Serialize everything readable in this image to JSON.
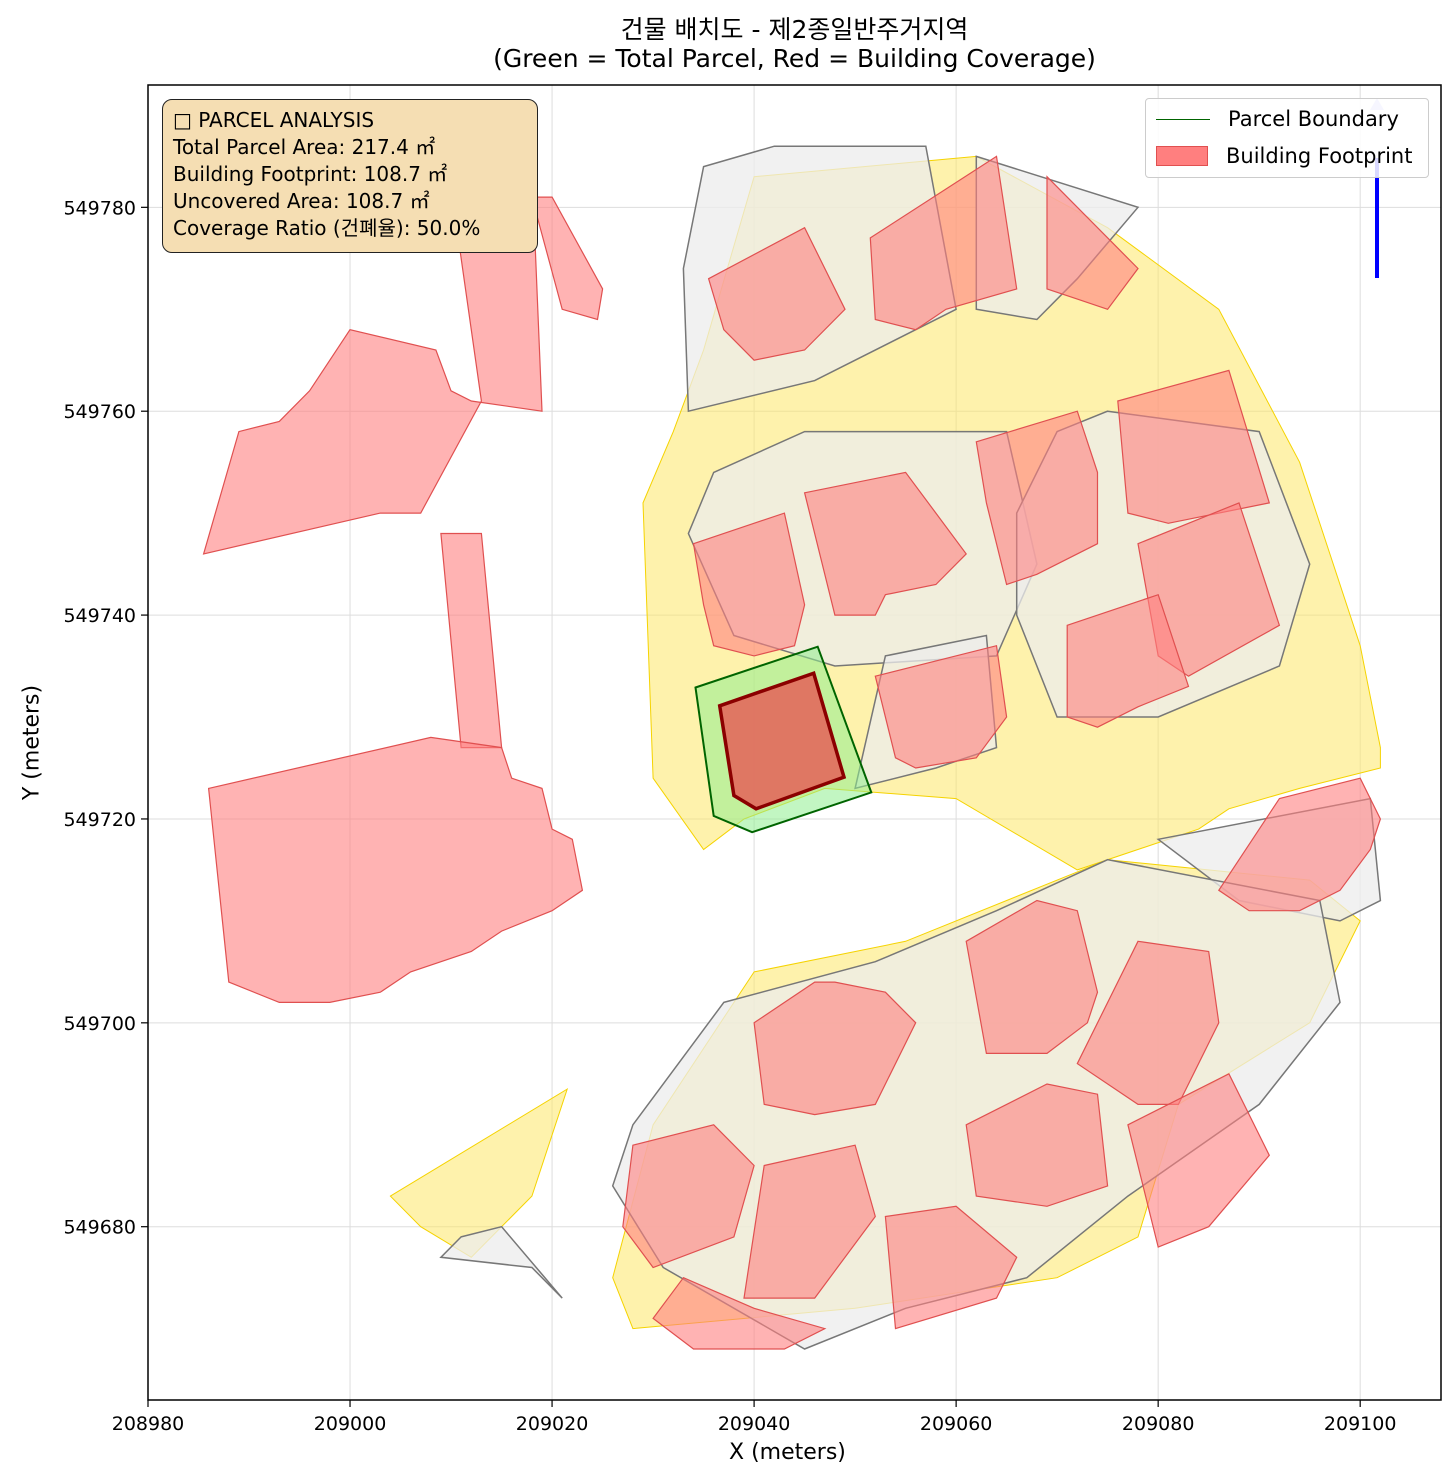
{
  "title": {
    "line1": "건물 배치도 - 제2종일반주거지역",
    "line2": "(Green = Total Parcel, Red = Building Coverage)"
  },
  "axes": {
    "xlabel": "X (meters)",
    "ylabel": "Y (meters)",
    "xlim": [
      208980,
      209108
    ],
    "ylim": [
      549663,
      549792
    ],
    "xticks": [
      208980,
      209000,
      209020,
      209040,
      209060,
      209080,
      209100
    ],
    "yticks": [
      549680,
      549700,
      549720,
      549740,
      549760,
      549780
    ],
    "grid": true
  },
  "info_box": {
    "line1": "□ PARCEL ANALYSIS",
    "line2": "Total Parcel Area: 217.4 ㎡",
    "line3": "Building Footprint: 108.7 ㎡",
    "line4": "Uncovered Area: 108.7 ㎡",
    "line5": "Coverage Ratio (건폐율): 50.0%"
  },
  "legend": {
    "placement": "top-right",
    "items": [
      {
        "label": "Parcel Boundary",
        "color": "#006400",
        "kind": "line"
      },
      {
        "label": "Building Footprint",
        "color": "#ff7f7f",
        "kind": "patch"
      }
    ]
  },
  "colors": {
    "road": "#fde768",
    "parcel_fill": "#ececec",
    "building": "#ff8080",
    "target_parcel_fill": "#90ee90",
    "target_parcel_edge": "#006400",
    "target_building_fill": "#e07060",
    "target_building_edge": "#8b0000",
    "north_arrow": "#0000ff"
  },
  "map_data": {
    "target_parcel": [
      [
        209034.2,
        549732.9
      ],
      [
        209046.3,
        549736.9
      ],
      [
        209051.6,
        549722.6
      ],
      [
        209039.8,
        549718.7
      ],
      [
        209036.0,
        549720.3
      ]
    ],
    "target_building": [
      [
        209036.6,
        549731.1
      ],
      [
        209045.9,
        549734.3
      ],
      [
        209048.9,
        549724.1
      ],
      [
        209040.2,
        549721.0
      ],
      [
        209038.0,
        549722.3
      ]
    ],
    "roads": [
      [
        [
          209032.0,
          549758.0
        ],
        [
          209035.0,
          549766.0
        ],
        [
          209040.0,
          549783.0
        ],
        [
          209062.0,
          549785.0
        ],
        [
          209075.0,
          549778.0
        ],
        [
          209086.0,
          549770.0
        ],
        [
          209094.0,
          549755.0
        ],
        [
          209100.0,
          549737.0
        ],
        [
          209102.0,
          549727.0
        ],
        [
          209102.0,
          549725.0
        ],
        [
          209094.0,
          549723.0
        ],
        [
          209087.0,
          549721.0
        ],
        [
          209084.0,
          549719.0
        ],
        [
          209072.0,
          549715.0
        ],
        [
          209060.0,
          549722.0
        ],
        [
          209047.0,
          549723.0
        ],
        [
          209039.0,
          549720.0
        ],
        [
          209035.0,
          549717.0
        ],
        [
          209030.0,
          549724.0
        ],
        [
          209029.0,
          549751.0
        ]
      ],
      [
        [
          209040.0,
          549705.0
        ],
        [
          209055.0,
          549708.0
        ],
        [
          209075.0,
          549716.0
        ],
        [
          209095.0,
          549714.0
        ],
        [
          209100.0,
          549710.0
        ],
        [
          209095.0,
          549700.0
        ],
        [
          209082.0,
          549692.0
        ],
        [
          209078.0,
          549679.0
        ],
        [
          209070.0,
          549675.0
        ],
        [
          209050.0,
          549672.0
        ],
        [
          209028.0,
          549670.0
        ],
        [
          209026.0,
          549675.0
        ],
        [
          209030.0,
          549690.0
        ]
      ],
      [
        [
          209004.0,
          549683.0
        ],
        [
          209021.5,
          549693.5
        ],
        [
          209018.0,
          549683.0
        ],
        [
          209012.0,
          549677.0
        ],
        [
          209007.0,
          549680.0
        ]
      ]
    ],
    "parcels": [
      [
        [
          209033.5,
          549760.0
        ],
        [
          209046.0,
          549763.0
        ],
        [
          209060.0,
          549770.0
        ],
        [
          209057.0,
          549786.0
        ],
        [
          209042.0,
          549786.0
        ],
        [
          209035.0,
          549784.0
        ],
        [
          209033.0,
          549774.0
        ]
      ],
      [
        [
          209062.0,
          549785.0
        ],
        [
          209078.0,
          549780.0
        ],
        [
          209072.0,
          549773.0
        ],
        [
          209068.0,
          549769.0
        ],
        [
          209062.0,
          549770.0
        ]
      ],
      [
        [
          209045.0,
          549758.0
        ],
        [
          209065.0,
          549758.0
        ],
        [
          209068.0,
          549745.0
        ],
        [
          209064.0,
          549736.0
        ],
        [
          209048.0,
          549735.0
        ],
        [
          209038.0,
          549738.0
        ],
        [
          209033.5,
          549748.0
        ],
        [
          209036.0,
          549754.0
        ]
      ],
      [
        [
          209075.0,
          549760.0
        ],
        [
          209090.0,
          549758.0
        ],
        [
          209095.0,
          549745.0
        ],
        [
          209092.0,
          549735.0
        ],
        [
          209080.0,
          549730.0
        ],
        [
          209070.0,
          549730.0
        ],
        [
          209066.0,
          549740.0
        ],
        [
          209066.0,
          549750.0
        ],
        [
          209070.0,
          549758.0
        ]
      ],
      [
        [
          209053.0,
          549736.0
        ],
        [
          209063.0,
          549738.0
        ],
        [
          209064.0,
          549727.0
        ],
        [
          209058.0,
          549725.0
        ],
        [
          209050.0,
          549723.0
        ]
      ],
      [
        [
          209080.0,
          549718.0
        ],
        [
          209101.0,
          549722.0
        ],
        [
          209102.0,
          549712.0
        ],
        [
          209098.0,
          549710.0
        ],
        [
          209088.0,
          549712.0
        ]
      ],
      [
        [
          209037.0,
          549702.0
        ],
        [
          209052.0,
          549706.0
        ],
        [
          209064.0,
          549711.0
        ],
        [
          209075.0,
          549716.0
        ],
        [
          209096.0,
          549712.0
        ],
        [
          209098.0,
          549702.0
        ],
        [
          209090.0,
          549692.0
        ],
        [
          209077.0,
          549683.0
        ],
        [
          209067.0,
          549675.0
        ],
        [
          209055.0,
          549672.0
        ],
        [
          209045.0,
          549668.0
        ],
        [
          209031.0,
          549676.0
        ],
        [
          209026.0,
          549684.0
        ],
        [
          209028.0,
          549690.0
        ]
      ],
      [
        [
          209011.0,
          549679.0
        ],
        [
          209015.0,
          549680.0
        ],
        [
          209021.0,
          549673.0
        ],
        [
          209018.0,
          549676.0
        ],
        [
          209009.0,
          549677.0
        ]
      ]
    ],
    "buildings": [
      [
        [
          209018.0,
          549781.0
        ],
        [
          209020.0,
          549781.0
        ],
        [
          209025.0,
          549772.0
        ],
        [
          209024.5,
          549769.0
        ],
        [
          209021.0,
          549770.0
        ]
      ],
      [
        [
          209010.0,
          549782.0
        ],
        [
          209018.0,
          549784.0
        ],
        [
          209019.0,
          549760.0
        ],
        [
          209012.0,
          549761.0
        ],
        [
          209010.0,
          549762.0
        ],
        [
          209008.5,
          549766.0
        ],
        [
          209000.0,
          549768.0
        ],
        [
          208996.0,
          549762.0
        ],
        [
          208993.0,
          549759.0
        ],
        [
          208989.0,
          549758.0
        ],
        [
          208985.5,
          549746.0
        ],
        [
          209003.0,
          549750.0
        ],
        [
          209007.0,
          549750.0
        ],
        [
          209013.0,
          549761.0
        ]
      ],
      [
        [
          209009.0,
          549748.0
        ],
        [
          209013.0,
          549748.0
        ],
        [
          209015.0,
          549727.0
        ],
        [
          209011.0,
          549727.0
        ]
      ],
      [
        [
          208986.0,
          549723.0
        ],
        [
          209008.0,
          549728.0
        ],
        [
          209015.0,
          549727.0
        ],
        [
          209016.0,
          549724.0
        ],
        [
          209019.0,
          549723.0
        ],
        [
          209020.0,
          549719.0
        ],
        [
          209022.0,
          549718.0
        ],
        [
          209023.0,
          549713.0
        ],
        [
          209020.0,
          549711.0
        ],
        [
          209015.0,
          549709.0
        ],
        [
          209012.0,
          549707.0
        ],
        [
          209006.0,
          549705.0
        ],
        [
          209003.0,
          549703.0
        ],
        [
          208998.0,
          549702.0
        ],
        [
          208993.0,
          549702.0
        ],
        [
          208988.0,
          549704.0
        ]
      ],
      [
        [
          209035.5,
          549773.0
        ],
        [
          209045.0,
          549778.0
        ],
        [
          209049.0,
          549770.0
        ],
        [
          209045.0,
          549766.0
        ],
        [
          209040.0,
          549765.0
        ],
        [
          209037.0,
          549768.0
        ]
      ],
      [
        [
          209051.5,
          549777.0
        ],
        [
          209064.0,
          549785.0
        ],
        [
          209066.0,
          549772.0
        ],
        [
          209059.0,
          549770.0
        ],
        [
          209056.0,
          549768.0
        ],
        [
          209052.0,
          549769.0
        ]
      ],
      [
        [
          209069.0,
          549783.0
        ],
        [
          209078.0,
          549774.0
        ],
        [
          209075.0,
          549770.0
        ],
        [
          209072.0,
          549771.0
        ],
        [
          209069.0,
          549772.0
        ]
      ],
      [
        [
          209034.0,
          549747.0
        ],
        [
          209043.0,
          549750.0
        ],
        [
          209045.0,
          549741.0
        ],
        [
          209044.0,
          549737.0
        ],
        [
          209040.0,
          549736.0
        ],
        [
          209036.0,
          549737.0
        ],
        [
          209035.0,
          549741.0
        ]
      ],
      [
        [
          209045.0,
          549752.0
        ],
        [
          209055.0,
          549754.0
        ],
        [
          209058.0,
          549750.0
        ],
        [
          209061.0,
          549746.0
        ],
        [
          209058.0,
          549743.0
        ],
        [
          209053.0,
          549742.0
        ],
        [
          209052.0,
          549740.0
        ],
        [
          209048.0,
          549740.0
        ]
      ],
      [
        [
          209062.0,
          549757.0
        ],
        [
          209072.0,
          549760.0
        ],
        [
          209074.0,
          549754.0
        ],
        [
          209074.0,
          549747.0
        ],
        [
          209068.0,
          549744.0
        ],
        [
          209065.0,
          549743.0
        ],
        [
          209063.0,
          549751.0
        ]
      ],
      [
        [
          209076.0,
          549761.0
        ],
        [
          209087.0,
          549764.0
        ],
        [
          209091.0,
          549751.0
        ],
        [
          209081.0,
          549749.0
        ],
        [
          209077.0,
          549750.0
        ]
      ],
      [
        [
          209078.0,
          549747.0
        ],
        [
          209088.0,
          549751.0
        ],
        [
          209092.0,
          549739.0
        ],
        [
          209083.0,
          549734.0
        ],
        [
          209080.0,
          549736.0
        ]
      ],
      [
        [
          209071.0,
          549739.0
        ],
        [
          209080.0,
          549742.0
        ],
        [
          209083.0,
          549733.0
        ],
        [
          209078.0,
          549731.0
        ],
        [
          209074.0,
          549729.0
        ],
        [
          209071.0,
          549730.0
        ]
      ],
      [
        [
          209052.0,
          549734.0
        ],
        [
          209064.0,
          549737.0
        ],
        [
          209065.0,
          549730.0
        ],
        [
          209062.0,
          549726.0
        ],
        [
          209056.0,
          549725.0
        ],
        [
          209054.0,
          549726.0
        ]
      ],
      [
        [
          209092.0,
          549722.0
        ],
        [
          209100.0,
          549724.0
        ],
        [
          209102.0,
          549720.0
        ],
        [
          209101.0,
          549717.0
        ],
        [
          209098.0,
          549713.0
        ],
        [
          209094.0,
          549711.0
        ],
        [
          209089.0,
          549711.0
        ],
        [
          209086.0,
          549713.0
        ]
      ],
      [
        [
          209040.0,
          549700.0
        ],
        [
          209046.0,
          549704.0
        ],
        [
          209048.0,
          549704.0
        ],
        [
          209053.0,
          549703.0
        ],
        [
          209056.0,
          549700.0
        ],
        [
          209052.0,
          549692.0
        ],
        [
          209046.0,
          549691.0
        ],
        [
          209041.0,
          549692.0
        ]
      ],
      [
        [
          209061.0,
          549708.0
        ],
        [
          209068.0,
          549712.0
        ],
        [
          209072.0,
          549711.0
        ],
        [
          209074.0,
          549703.0
        ],
        [
          209073.0,
          549700.0
        ],
        [
          209069.0,
          549697.0
        ],
        [
          209063.0,
          549697.0
        ]
      ],
      [
        [
          209078.0,
          549708.0
        ],
        [
          209085.0,
          549707.0
        ],
        [
          209086.0,
          549700.0
        ],
        [
          209082.0,
          549692.0
        ],
        [
          209078.0,
          549692.0
        ],
        [
          209072.0,
          549696.0
        ]
      ],
      [
        [
          209061.0,
          549690.0
        ],
        [
          209069.0,
          549694.0
        ],
        [
          209074.0,
          549693.0
        ],
        [
          209075.0,
          549684.0
        ],
        [
          209069.0,
          549682.0
        ],
        [
          209062.0,
          549683.0
        ]
      ],
      [
        [
          209077.0,
          549690.0
        ],
        [
          209087.0,
          549695.0
        ],
        [
          209091.0,
          549687.0
        ],
        [
          209085.0,
          549680.0
        ],
        [
          209080.0,
          549678.0
        ]
      ],
      [
        [
          209028.0,
          549688.0
        ],
        [
          209036.0,
          549690.0
        ],
        [
          209040.0,
          549686.0
        ],
        [
          209038.0,
          549679.0
        ],
        [
          209030.0,
          549676.0
        ],
        [
          209027.0,
          549680.0
        ]
      ],
      [
        [
          209041.0,
          549686.0
        ],
        [
          209050.0,
          549688.0
        ],
        [
          209052.0,
          549681.0
        ],
        [
          209046.0,
          549673.0
        ],
        [
          209039.0,
          549673.0
        ]
      ],
      [
        [
          209053.0,
          549681.0
        ],
        [
          209060.0,
          549682.0
        ],
        [
          209066.0,
          549677.0
        ],
        [
          209064.0,
          549673.0
        ],
        [
          209054.0,
          549670.0
        ]
      ],
      [
        [
          209033.0,
          549675.0
        ],
        [
          209040.0,
          549672.0
        ],
        [
          209047.0,
          549670.0
        ],
        [
          209043.0,
          549668.0
        ],
        [
          209034.0,
          549668.0
        ],
        [
          209030.0,
          549671.0
        ]
      ]
    ]
  }
}
